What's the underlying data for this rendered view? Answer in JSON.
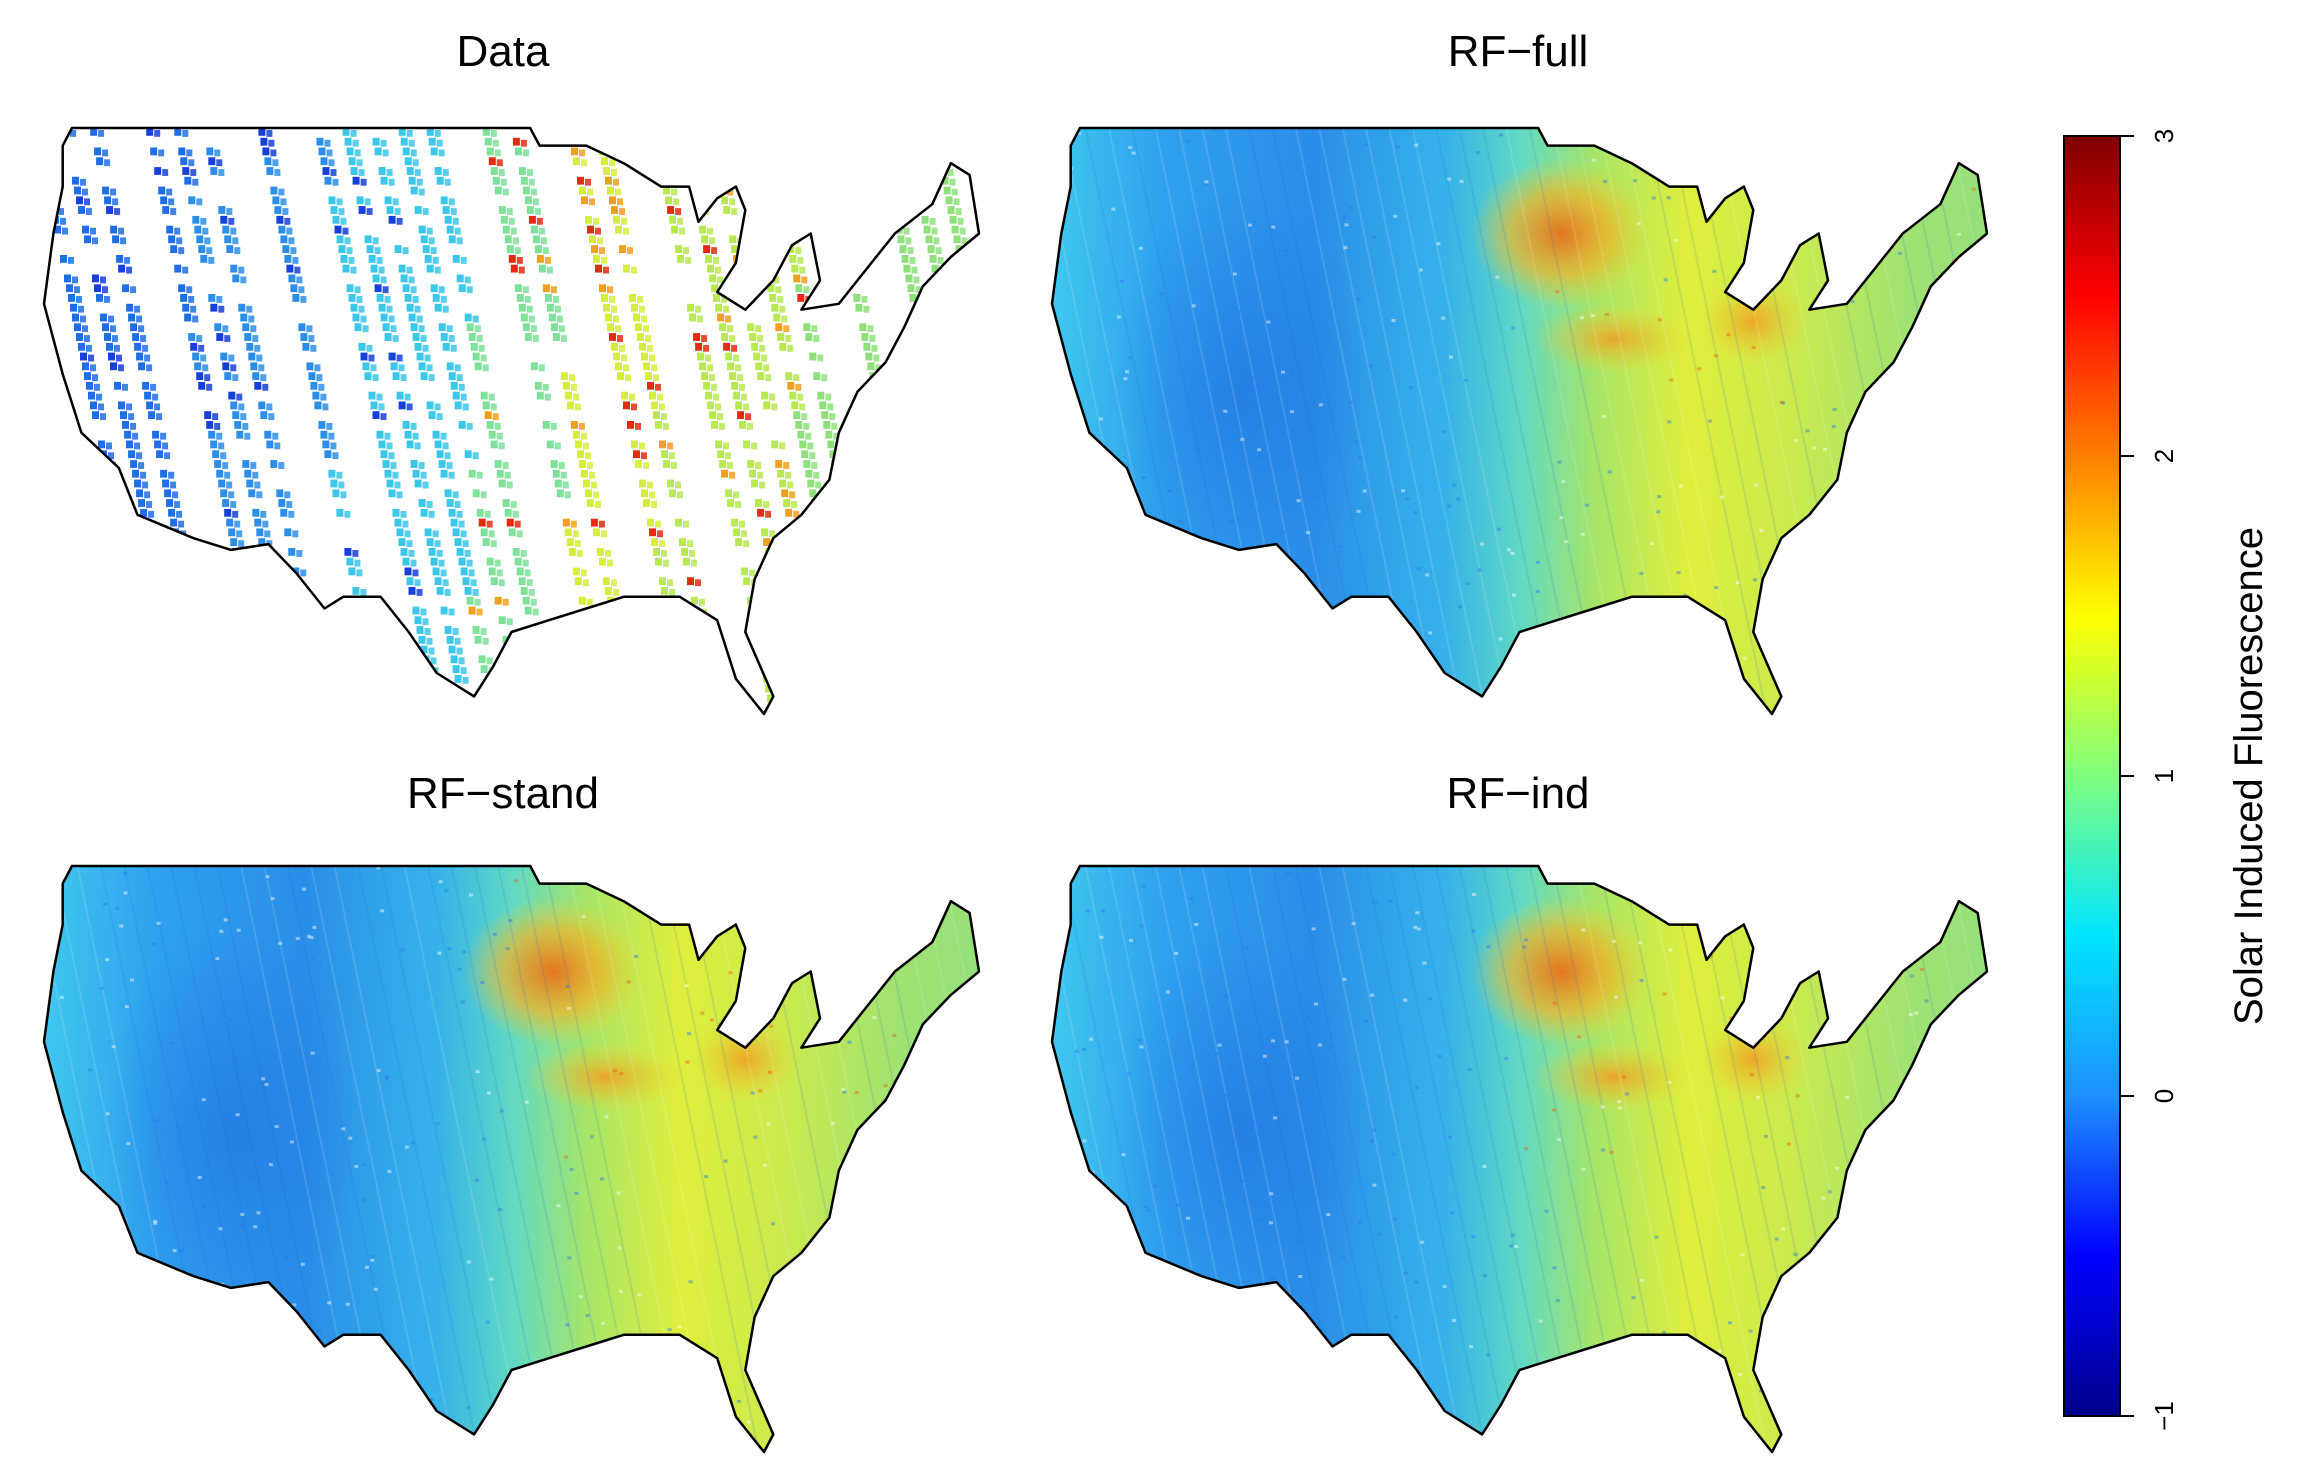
{
  "figure": {
    "panels": [
      {
        "id": "data",
        "title": "Data",
        "kind": "swath"
      },
      {
        "id": "rf-full",
        "title": "RF−full",
        "kind": "smooth"
      },
      {
        "id": "rf-stand",
        "title": "RF−stand",
        "kind": "smooth"
      },
      {
        "id": "rf-ind",
        "title": "RF−ind",
        "kind": "smooth"
      }
    ]
  },
  "colorbar": {
    "label": "Solar Induced Fluorescence",
    "min": -1,
    "max": 3,
    "ticks": [
      {
        "value": 3,
        "text": "3"
      },
      {
        "value": 2,
        "text": "2"
      },
      {
        "value": 1,
        "text": "1"
      },
      {
        "value": 0,
        "text": "0"
      },
      {
        "value": -1,
        "text": "−1"
      }
    ],
    "colors": [
      "#00008b",
      "#0000ff",
      "#1e90ff",
      "#00e5ff",
      "#7fff7f",
      "#ffff00",
      "#ff7f00",
      "#ff0000",
      "#7f0000"
    ]
  }
}
